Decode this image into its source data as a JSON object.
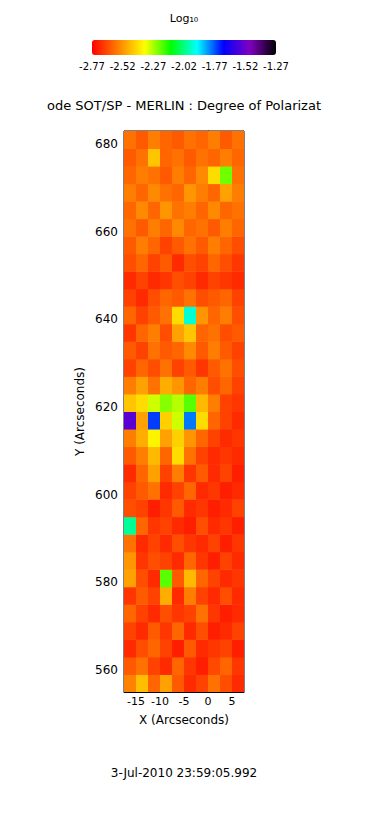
{
  "chart_data": {
    "type": "heatmap",
    "title": "ode SOT/SP - MERLIN : Degree of Polarizat",
    "subtitle": "3-Jul-2010 23:59:05.992",
    "x_label": "X (Arcseconds)",
    "y_label": "Y (Arcseconds)",
    "xlim": [
      -17.5,
      7.5
    ],
    "xticks": [
      -15,
      -10,
      -5,
      0,
      5
    ],
    "ylim": [
      555,
      683
    ],
    "yticks": [
      560,
      580,
      600,
      620,
      640,
      660,
      680
    ],
    "cells": {
      "x": [
        -16.25,
        -13.75,
        -11.25,
        -8.75,
        -6.25,
        -3.75,
        -1.25,
        1.25,
        3.75,
        6.25
      ],
      "y": [
        557,
        561,
        565,
        569,
        573,
        577,
        581,
        585,
        589,
        593,
        597,
        601,
        605,
        609,
        613,
        617,
        621,
        625,
        629,
        633,
        637,
        641,
        645,
        649,
        653,
        657,
        661,
        665,
        669,
        673,
        677,
        681
      ],
      "values": [
        [
          -2.55,
          -2.45,
          -2.6,
          -2.5,
          -2.62,
          -2.7,
          -2.66,
          -2.58,
          -2.64,
          -2.7
        ],
        [
          -2.62,
          -2.58,
          -2.66,
          -2.7,
          -2.6,
          -2.68,
          -2.72,
          -2.65,
          -2.6,
          -2.68
        ],
        [
          -2.7,
          -2.64,
          -2.6,
          -2.66,
          -2.72,
          -2.62,
          -2.7,
          -2.68,
          -2.66,
          -2.72
        ],
        [
          -2.66,
          -2.7,
          -2.62,
          -2.68,
          -2.6,
          -2.7,
          -2.64,
          -2.72,
          -2.7,
          -2.66
        ],
        [
          -2.6,
          -2.66,
          -2.7,
          -2.64,
          -2.68,
          -2.66,
          -2.58,
          -2.68,
          -2.72,
          -2.7
        ],
        [
          -2.68,
          -2.62,
          -2.66,
          -2.48,
          -2.7,
          -2.56,
          -2.66,
          -2.7,
          -2.64,
          -2.7
        ],
        [
          -2.5,
          -2.64,
          -2.7,
          -2.2,
          -2.62,
          -2.46,
          -2.6,
          -2.66,
          -2.7,
          -2.68
        ],
        [
          -2.52,
          -2.68,
          -2.64,
          -2.66,
          -2.7,
          -2.6,
          -2.68,
          -2.72,
          -2.66,
          -2.7
        ],
        [
          -2.58,
          -2.7,
          -2.66,
          -2.7,
          -2.64,
          -2.68,
          -2.7,
          -2.66,
          -2.72,
          -2.68
        ],
        [
          -2.0,
          -2.6,
          -2.68,
          -2.66,
          -2.7,
          -2.72,
          -2.64,
          -2.7,
          -2.68,
          -2.72
        ],
        [
          -2.64,
          -2.66,
          -2.72,
          -2.68,
          -2.62,
          -2.7,
          -2.68,
          -2.72,
          -2.7,
          -2.66
        ],
        [
          -2.66,
          -2.62,
          -2.58,
          -2.7,
          -2.66,
          -2.6,
          -2.7,
          -2.68,
          -2.72,
          -2.7
        ],
        [
          -2.7,
          -2.6,
          -2.5,
          -2.66,
          -2.56,
          -2.68,
          -2.62,
          -2.7,
          -2.66,
          -2.72
        ],
        [
          -2.62,
          -2.56,
          -2.46,
          -2.6,
          -2.4,
          -2.58,
          -2.66,
          -2.7,
          -2.68,
          -2.7
        ],
        [
          -2.56,
          -2.48,
          -2.36,
          -2.5,
          -2.42,
          -2.52,
          -2.6,
          -2.66,
          -2.7,
          -2.68
        ],
        [
          -1.55,
          -2.5,
          -1.75,
          -2.42,
          -2.3,
          -1.8,
          -2.4,
          -2.6,
          -2.66,
          -2.7
        ],
        [
          -2.44,
          -2.4,
          -2.3,
          -2.24,
          -2.28,
          -2.2,
          -2.46,
          -2.56,
          -2.66,
          -2.68
        ],
        [
          -2.56,
          -2.5,
          -2.58,
          -2.48,
          -2.52,
          -2.6,
          -2.56,
          -2.64,
          -2.6,
          -2.66
        ],
        [
          -2.66,
          -2.6,
          -2.64,
          -2.58,
          -2.66,
          -2.62,
          -2.68,
          -2.62,
          -2.58,
          -2.64
        ],
        [
          -2.62,
          -2.66,
          -2.58,
          -2.62,
          -2.6,
          -2.54,
          -2.62,
          -2.56,
          -2.62,
          -2.66
        ],
        [
          -2.68,
          -2.6,
          -2.56,
          -2.64,
          -2.5,
          -2.44,
          -2.6,
          -2.58,
          -2.64,
          -2.62
        ],
        [
          -2.6,
          -2.66,
          -2.62,
          -2.58,
          -2.4,
          -1.95,
          -2.52,
          -2.6,
          -2.56,
          -2.64
        ],
        [
          -2.66,
          -2.7,
          -2.64,
          -2.6,
          -2.62,
          -2.58,
          -2.64,
          -2.62,
          -2.6,
          -2.66
        ],
        [
          -2.7,
          -2.66,
          -2.7,
          -2.68,
          -2.64,
          -2.66,
          -2.7,
          -2.66,
          -2.68,
          -2.7
        ],
        [
          -2.64,
          -2.6,
          -2.66,
          -2.62,
          -2.7,
          -2.64,
          -2.66,
          -2.6,
          -2.64,
          -2.68
        ],
        [
          -2.62,
          -2.56,
          -2.6,
          -2.66,
          -2.62,
          -2.58,
          -2.62,
          -2.56,
          -2.6,
          -2.64
        ],
        [
          -2.58,
          -2.62,
          -2.56,
          -2.6,
          -2.54,
          -2.6,
          -2.58,
          -2.62,
          -2.56,
          -2.6
        ],
        [
          -2.6,
          -2.54,
          -2.6,
          -2.52,
          -2.58,
          -2.56,
          -2.6,
          -2.54,
          -2.6,
          -2.58
        ],
        [
          -2.56,
          -2.6,
          -2.54,
          -2.58,
          -2.6,
          -2.52,
          -2.56,
          -2.6,
          -2.5,
          -2.56
        ],
        [
          -2.6,
          -2.56,
          -2.58,
          -2.62,
          -2.56,
          -2.6,
          -2.54,
          -2.4,
          -2.22,
          -2.58
        ],
        [
          -2.62,
          -2.58,
          -2.44,
          -2.6,
          -2.58,
          -2.62,
          -2.58,
          -2.6,
          -2.56,
          -2.6
        ],
        [
          -2.58,
          -2.62,
          -2.56,
          -2.6,
          -2.62,
          -2.58,
          -2.6,
          -2.56,
          -2.62,
          -2.58
        ]
      ]
    },
    "colorbar": {
      "title": "Log₁₀",
      "range": [
        -2.77,
        -1.27
      ],
      "ticks": [
        -2.77,
        -2.52,
        -2.27,
        -2.02,
        -1.77,
        -1.52,
        -1.27
      ]
    }
  }
}
